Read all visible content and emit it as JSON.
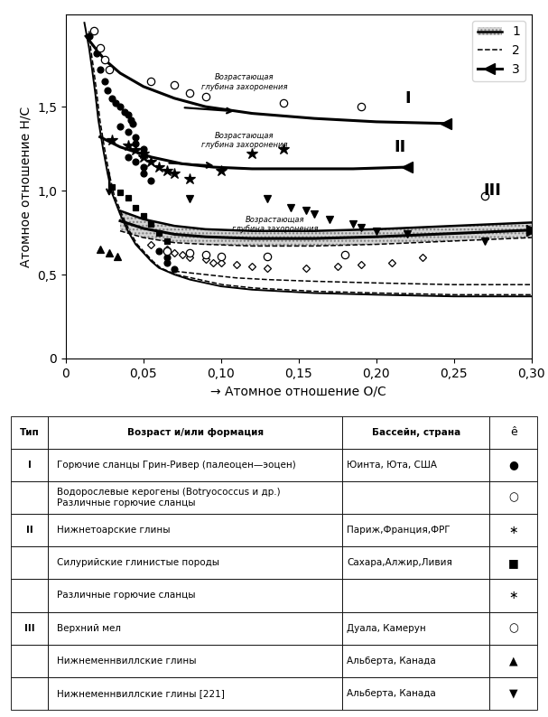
{
  "chart_data": [
    {
      "type": "scatter",
      "xlabel": "→ Атомное отношение O/C",
      "ylabel": "Атомное отношение H/C",
      "xlim": [
        0,
        0.3
      ],
      "ylim": [
        0,
        2.05
      ],
      "xticks": [
        0,
        {
          "value": 0.05,
          "label": "0,05"
        },
        {
          "value": 0.1,
          "label": "0,10"
        },
        {
          "value": 0.15,
          "label": "0,15"
        },
        {
          "value": 0.2,
          "label": "0,20"
        },
        {
          "value": 0.25,
          "label": "0,25"
        },
        {
          "value": 0.3,
          "label": "0,30"
        }
      ],
      "yticks": [
        0,
        {
          "value": 0.5,
          "label": "0,5"
        },
        {
          "value": 1.0,
          "label": "1,0"
        },
        {
          "value": 1.5,
          "label": "1,5"
        }
      ],
      "color": "black",
      "legend": "upper right",
      "series": [
        {
          "type": "area",
          "name": "1",
          "line_style": "solid",
          "x": [
            0.035,
            0.05,
            0.07,
            0.09,
            0.12,
            0.16,
            0.2,
            0.25,
            0.3
          ],
          "values": [
            0.88,
            0.83,
            0.79,
            0.77,
            0.76,
            0.76,
            0.77,
            0.79,
            0.81
          ],
          "lower": [
            0.76,
            0.72,
            0.69,
            0.68,
            0.67,
            0.67,
            0.68,
            0.7,
            0.72
          ]
        },
        {
          "type": "line",
          "name": "2",
          "line_style": "dashed",
          "x": [
            0.015,
            0.016,
            0.018,
            0.02,
            0.022,
            0.025,
            0.028,
            0.031,
            0.036,
            0.041,
            0.046,
            0.051,
            0.056,
            0.061,
            0.071,
            0.081,
            0.091,
            0.101,
            0.121,
            0.141,
            0.161,
            0.201,
            0.251,
            0.3
          ],
          "values": [
            1.95,
            1.85,
            1.72,
            1.58,
            1.42,
            1.25,
            1.1,
            0.98,
            0.86,
            0.76,
            0.68,
            0.63,
            0.58,
            0.54,
            0.5,
            0.48,
            0.46,
            0.44,
            0.42,
            0.41,
            0.4,
            0.39,
            0.38,
            0.38
          ]
        },
        {
          "type": "line",
          "name": "2",
          "line_style": "dashed",
          "x": [
            0.07,
            0.09,
            0.11,
            0.13,
            0.16,
            0.2,
            0.25,
            0.3
          ],
          "values": [
            0.52,
            0.5,
            0.48,
            0.47,
            0.46,
            0.45,
            0.44,
            0.44
          ]
        },
        {
          "type": "line",
          "line_style": "solid",
          "x": [
            0.012,
            0.013,
            0.015,
            0.017,
            0.019,
            0.021,
            0.024,
            0.027,
            0.03,
            0.035,
            0.04,
            0.045,
            0.05,
            0.055,
            0.06,
            0.07,
            0.08,
            0.09,
            0.1,
            0.12,
            0.14,
            0.16,
            0.2,
            0.25,
            0.3
          ],
          "values": [
            2.0,
            1.95,
            1.85,
            1.72,
            1.58,
            1.42,
            1.25,
            1.1,
            0.98,
            0.86,
            0.76,
            0.68,
            0.63,
            0.58,
            0.54,
            0.5,
            0.47,
            0.45,
            0.43,
            0.41,
            0.4,
            0.39,
            0.38,
            0.37,
            0.37
          ]
        },
        {
          "type": "line",
          "name": "3",
          "line_style": "solid",
          "marker": "<",
          "x": [
            0.013,
            0.018,
            0.025,
            0.035,
            0.05,
            0.07,
            0.09,
            0.12,
            0.16,
            0.2,
            0.245
          ],
          "values": [
            1.92,
            1.86,
            1.78,
            1.7,
            1.62,
            1.55,
            1.5,
            1.46,
            1.43,
            1.41,
            1.4
          ]
        },
        {
          "type": "line",
          "name": "3",
          "line_style": "solid",
          "marker": "<",
          "x": [
            0.022,
            0.035,
            0.055,
            0.075,
            0.095,
            0.12,
            0.155,
            0.185,
            0.22
          ],
          "values": [
            1.32,
            1.26,
            1.2,
            1.16,
            1.14,
            1.13,
            1.13,
            1.13,
            1.14
          ]
        },
        {
          "type": "line",
          "name": "3",
          "line_style": "solid",
          "marker": ">",
          "x": [
            0.035,
            0.05,
            0.07,
            0.09,
            0.12,
            0.16,
            0.2,
            0.25,
            0.3
          ],
          "values": [
            0.82,
            0.775,
            0.74,
            0.725,
            0.715,
            0.715,
            0.725,
            0.745,
            0.765
          ]
        },
        {
          "type": "arrow",
          "x": [
            0.028,
            0.028
          ],
          "values": [
            1.12,
            0.95
          ]
        },
        {
          "type": "arrow",
          "x": [
            0.075,
            0.11
          ],
          "values": [
            1.495,
            1.472
          ]
        },
        {
          "type": "arrow",
          "x": [
            0.065,
            0.097
          ],
          "values": [
            1.165,
            1.148
          ]
        },
        {
          "type": "scatter",
          "marker": "circle",
          "x": [
            0.015,
            0.02,
            0.022,
            0.025,
            0.027,
            0.03,
            0.032,
            0.035,
            0.038,
            0.04,
            0.042,
            0.043,
            0.035,
            0.04,
            0.045,
            0.045,
            0.05,
            0.04,
            0.045,
            0.05,
            0.05,
            0.055,
            0.06,
            0.065,
            0.065,
            0.07
          ],
          "values": [
            1.92,
            1.82,
            1.72,
            1.65,
            1.6,
            1.55,
            1.52,
            1.5,
            1.47,
            1.45,
            1.42,
            1.4,
            1.38,
            1.35,
            1.32,
            1.28,
            1.25,
            1.2,
            1.17,
            1.14,
            1.1,
            1.06,
            0.64,
            0.6,
            0.57,
            0.53
          ]
        },
        {
          "type": "scatter",
          "marker": "open_circle",
          "x": [
            0.018,
            0.022,
            0.025,
            0.028,
            0.055,
            0.07,
            0.08,
            0.09,
            0.14,
            0.19
          ],
          "values": [
            1.95,
            1.85,
            1.78,
            1.72,
            1.65,
            1.63,
            1.58,
            1.56,
            1.52,
            1.5
          ]
        },
        {
          "type": "scatter",
          "marker": "star",
          "x": [
            0.03,
            0.04,
            0.045,
            0.05,
            0.05,
            0.055,
            0.06,
            0.065,
            0.07,
            0.08,
            0.14,
            0.1,
            0.12
          ],
          "values": [
            1.3,
            1.27,
            1.24,
            1.22,
            1.2,
            1.17,
            1.14,
            1.12,
            1.1,
            1.07,
            1.25,
            1.12,
            1.22
          ]
        },
        {
          "type": "scatter",
          "marker": "square",
          "x": [
            0.03,
            0.035,
            0.04,
            0.045,
            0.05,
            0.055,
            0.06,
            0.065
          ],
          "values": [
            1.02,
            0.99,
            0.96,
            0.9,
            0.85,
            0.8,
            0.75,
            0.7
          ]
        },
        {
          "type": "scatter",
          "marker": "open_diamond",
          "x": [
            0.055,
            0.065,
            0.07,
            0.075,
            0.08,
            0.09,
            0.095,
            0.1,
            0.11,
            0.12,
            0.13,
            0.155,
            0.175,
            0.19,
            0.21,
            0.23
          ],
          "values": [
            0.68,
            0.65,
            0.63,
            0.62,
            0.6,
            0.59,
            0.57,
            0.57,
            0.56,
            0.55,
            0.54,
            0.54,
            0.55,
            0.56,
            0.57,
            0.6
          ]
        },
        {
          "type": "scatter",
          "marker": "triangle_up",
          "x": [
            0.022,
            0.028,
            0.033
          ],
          "values": [
            0.65,
            0.63,
            0.61
          ]
        },
        {
          "type": "scatter",
          "marker": "triangle_down",
          "x": [
            0.08,
            0.13,
            0.145,
            0.155,
            0.16,
            0.17,
            0.185,
            0.19,
            0.2,
            0.22,
            0.27
          ],
          "values": [
            0.95,
            0.95,
            0.9,
            0.88,
            0.86,
            0.83,
            0.8,
            0.78,
            0.76,
            0.74,
            0.7
          ]
        },
        {
          "type": "scatter",
          "marker": "open_circle",
          "x": [
            0.065,
            0.08,
            0.09,
            0.1,
            0.13,
            0.18,
            0.27
          ],
          "values": [
            0.64,
            0.63,
            0.62,
            0.61,
            0.61,
            0.62,
            0.97
          ]
        }
      ],
      "annotations": [
        {
          "text": "I",
          "x": 0.22,
          "y": 1.55
        },
        {
          "text": "II",
          "x": 0.215,
          "y": 1.26
        },
        {
          "text": "III",
          "x": 0.275,
          "y": 1.0
        },
        {
          "text": "Возрастающая\nглубина захоронения",
          "x": 0.115,
          "y": 1.645
        },
        {
          "text": "Возрастающая\nглубина захоронения",
          "x": 0.115,
          "y": 1.3
        },
        {
          "text": "Возрастающая\nглубина захоронения",
          "x": 0.135,
          "y": 0.8
        }
      ]
    },
    {
      "type": "table",
      "columns": [
        "Тип",
        "Возраст и/или формация",
        "Бассейн, страна",
        "ê"
      ],
      "rows": [
        [
          "I",
          "Горючие сланцы Грин-Ривер (палеоцен—эоцен)",
          "Юинта, Юта, США",
          "●"
        ],
        [
          null,
          "Водорослевые керогены (Botryococcus и др.)\nРазличные горючие сланцы",
          null,
          "○"
        ],
        [
          "II",
          "Нижнетоарские глины",
          "Париж,Франция,ФРГ",
          "∗"
        ],
        [
          null,
          "Силурийские глинистые породы",
          "Сахара,Алжир,Ливия",
          "■"
        ],
        [
          null,
          "Различные горючие сланцы",
          null,
          "∗"
        ],
        [
          "III",
          "Верхний мел",
          "Дуала, Камерун",
          "○"
        ],
        [
          null,
          "Нижнеменнвиллские глины",
          "Альберта, Канада",
          "▲"
        ],
        [
          null,
          "Нижнеменнвиллские глины [221]",
          "Альберта, Канада",
          "▼"
        ]
      ]
    }
  ]
}
